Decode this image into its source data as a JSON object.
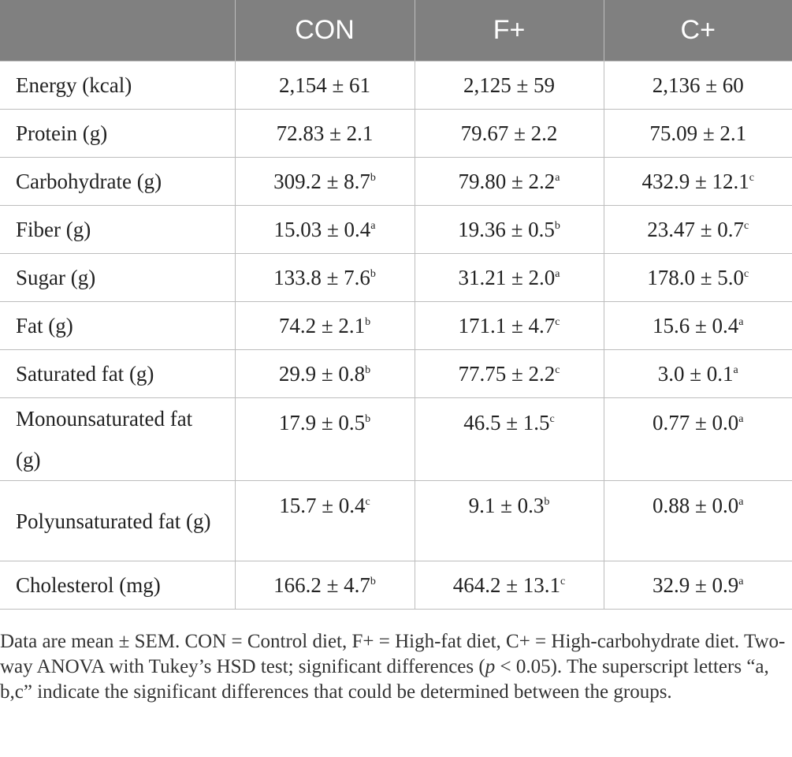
{
  "table": {
    "headers": [
      "",
      "CON",
      "F+",
      "C+"
    ],
    "rows": [
      {
        "label": "Energy (kcal)",
        "tall": false,
        "cells": [
          {
            "v": "2,154 ± 61",
            "s": ""
          },
          {
            "v": "2,125 ± 59",
            "s": ""
          },
          {
            "v": "2,136 ± 60",
            "s": ""
          }
        ]
      },
      {
        "label": "Protein (g)",
        "tall": false,
        "cells": [
          {
            "v": "72.83 ± 2.1",
            "s": ""
          },
          {
            "v": "79.67 ± 2.2",
            "s": ""
          },
          {
            "v": "75.09 ± 2.1",
            "s": ""
          }
        ]
      },
      {
        "label": "Carbohydrate (g)",
        "tall": false,
        "cells": [
          {
            "v": "309.2 ± 8.7",
            "s": "b"
          },
          {
            "v": "79.80 ± 2.2",
            "s": "a"
          },
          {
            "v": "432.9 ± 12.1",
            "s": "c"
          }
        ]
      },
      {
        "label": "Fiber (g)",
        "tall": false,
        "cells": [
          {
            "v": "15.03 ± 0.4",
            "s": "a"
          },
          {
            "v": "19.36 ± 0.5",
            "s": "b"
          },
          {
            "v": "23.47 ± 0.7",
            "s": "c"
          }
        ]
      },
      {
        "label": "Sugar (g)",
        "tall": false,
        "cells": [
          {
            "v": "133.8 ± 7.6",
            "s": "b"
          },
          {
            "v": "31.21 ± 2.0",
            "s": "a"
          },
          {
            "v": "178.0 ± 5.0",
            "s": "c"
          }
        ]
      },
      {
        "label": "Fat (g)",
        "tall": false,
        "cells": [
          {
            "v": "74.2 ± 2.1",
            "s": "b"
          },
          {
            "v": "171.1 ± 4.7",
            "s": "c"
          },
          {
            "v": "15.6 ± 0.4",
            "s": "a"
          }
        ]
      },
      {
        "label": "Saturated fat (g)",
        "tall": false,
        "cells": [
          {
            "v": "29.9 ± 0.8",
            "s": "b"
          },
          {
            "v": "77.75 ± 2.2",
            "s": "c"
          },
          {
            "v": "3.0 ± 0.1",
            "s": "a"
          }
        ]
      },
      {
        "label": "Monounsaturated fat (g)",
        "tall": true,
        "cells": [
          {
            "v": "17.9 ± 0.5",
            "s": "b"
          },
          {
            "v": "46.5 ± 1.5",
            "s": "c"
          },
          {
            "v": "0.77 ± 0.0",
            "s": "a"
          }
        ]
      },
      {
        "label": "Polyunsaturated fat (g)",
        "tall": true,
        "cells": [
          {
            "v": "15.7 ± 0.4",
            "s": "c"
          },
          {
            "v": "9.1 ± 0.3",
            "s": "b"
          },
          {
            "v": "0.88 ± 0.0",
            "s": "a"
          }
        ]
      },
      {
        "label": "Cholesterol (mg)",
        "tall": false,
        "cells": [
          {
            "v": "166.2 ± 4.7",
            "s": "b"
          },
          {
            "v": "464.2 ± 13.1",
            "s": "c"
          },
          {
            "v": "32.9 ± 0.9",
            "s": "a"
          }
        ]
      }
    ]
  },
  "footnote": {
    "part1": "Data are mean ± SEM. CON = Control diet, F+ = High-fat diet, C+ = High-carbohydrate diet. Two-way ANOVA with Tukey’s HSD test; significant differences (",
    "p_symbol": "p",
    "part2": " < 0.05). The superscript letters “a, b,c” indicate the significant differences that could be determined between the groups."
  }
}
